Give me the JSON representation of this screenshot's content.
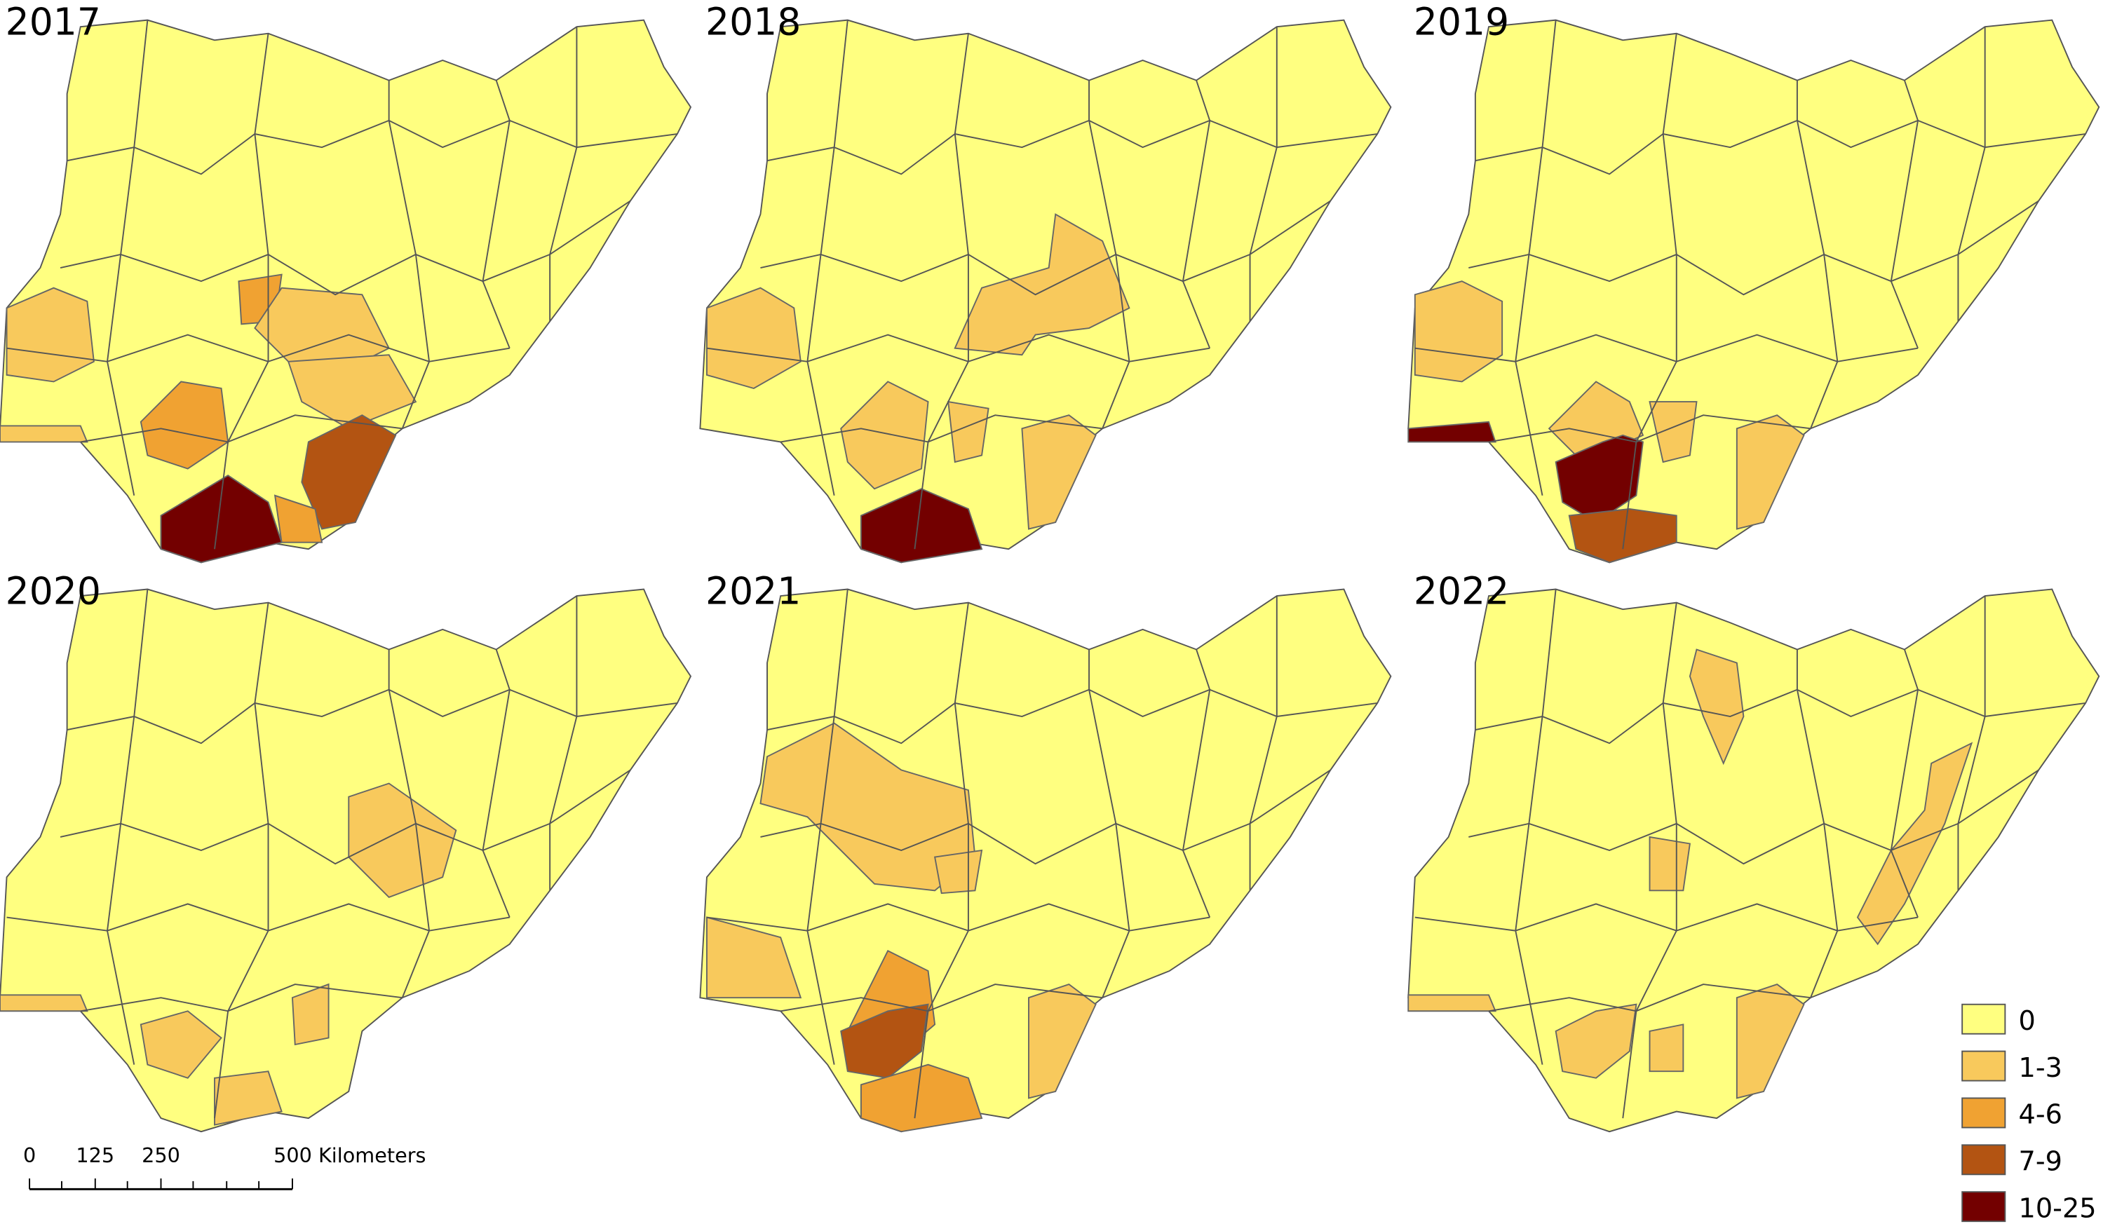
{
  "panels": [
    {
      "title": "2017"
    },
    {
      "title": "2018"
    },
    {
      "title": "2019"
    },
    {
      "title": "2020"
    },
    {
      "title": "2021"
    },
    {
      "title": "2022"
    }
  ],
  "legend": {
    "items": [
      {
        "label": "0",
        "color": "#ffff80"
      },
      {
        "label": "1-3",
        "color": "#f8c95c"
      },
      {
        "label": "4-6",
        "color": "#f0a232"
      },
      {
        "label": "7-9",
        "color": "#b35412"
      },
      {
        "label": "10-25",
        "color": "#730000"
      }
    ]
  },
  "scale_bar": {
    "labels": [
      "0",
      "125",
      "250",
      "500 Kilometers"
    ]
  }
}
